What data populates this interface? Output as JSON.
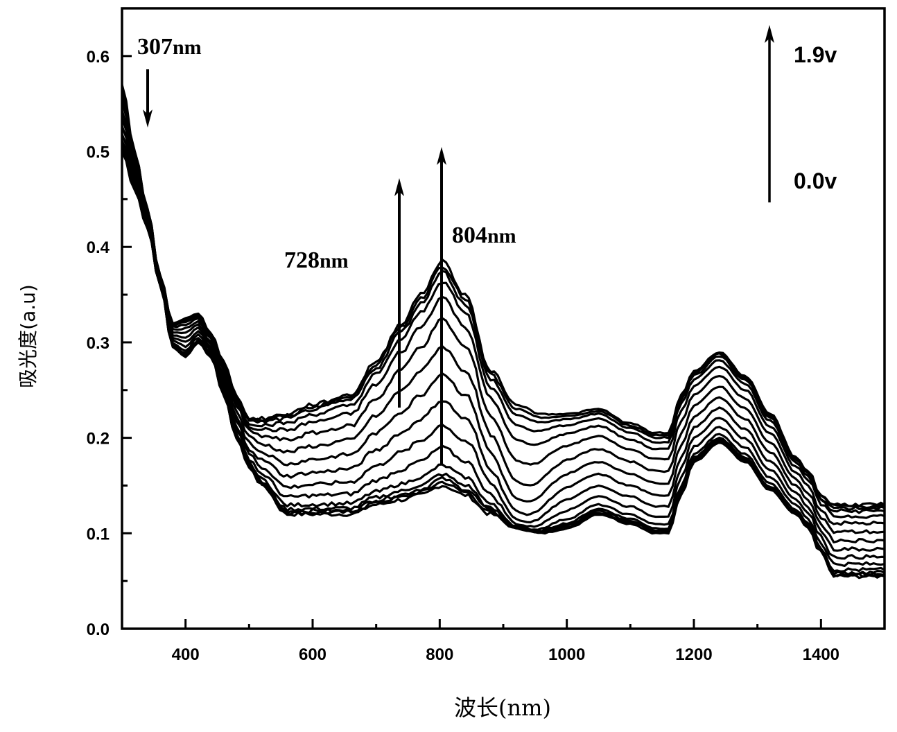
{
  "chart_data": {
    "type": "line",
    "title": "",
    "xlabel": "波长(nm)",
    "ylabel": "吸光度(a.u)",
    "xlim": [
      300,
      1500
    ],
    "ylim": [
      0,
      0.65
    ],
    "x_ticks": [
      400,
      600,
      800,
      1000,
      1200,
      1400
    ],
    "x_tick_labels": [
      "400",
      "600",
      "800",
      "1000",
      "1200",
      "1400"
    ],
    "x_minor_ticks": [
      500,
      700,
      900,
      1100,
      1300
    ],
    "y_ticks": [
      0.0,
      0.1,
      0.2,
      0.3,
      0.4,
      0.5,
      0.6
    ],
    "y_tick_labels": [
      "0.0",
      "0.1",
      "0.2",
      "0.3",
      "0.4",
      "0.5",
      "0.6"
    ],
    "y_minor_ticks": [
      0.05,
      0.15,
      0.25,
      0.35,
      0.45,
      0.55
    ],
    "grid": false,
    "legend": "none",
    "series_count": 16,
    "voltage_range": {
      "start_label": "0.0v",
      "end_label": "1.9v"
    },
    "x": [
      300,
      320,
      340,
      360,
      380,
      400,
      420,
      440,
      460,
      480,
      500,
      520,
      560,
      600,
      660,
      700,
      740,
      770,
      804,
      840,
      880,
      920,
      960,
      1000,
      1050,
      1100,
      1140,
      1160,
      1180,
      1200,
      1240,
      1280,
      1320,
      1360,
      1380,
      1400,
      1420,
      1460,
      1500
    ],
    "series": [
      {
        "name": "0.0v",
        "values": [
          0.5,
          0.46,
          0.42,
          0.36,
          0.295,
          0.285,
          0.3,
          0.285,
          0.245,
          0.2,
          0.17,
          0.15,
          0.12,
          0.12,
          0.12,
          0.13,
          0.135,
          0.14,
          0.15,
          0.14,
          0.12,
          0.105,
          0.1,
          0.105,
          0.12,
          0.11,
          0.1,
          0.1,
          0.14,
          0.175,
          0.195,
          0.175,
          0.145,
          0.12,
          0.105,
          0.08,
          0.055,
          0.055,
          0.055
        ]
      },
      {
        "name": "1.9v",
        "values": [
          0.57,
          0.5,
          0.44,
          0.37,
          0.32,
          0.325,
          0.33,
          0.31,
          0.28,
          0.245,
          0.22,
          0.22,
          0.225,
          0.235,
          0.245,
          0.28,
          0.32,
          0.35,
          0.385,
          0.35,
          0.27,
          0.235,
          0.225,
          0.225,
          0.23,
          0.215,
          0.205,
          0.205,
          0.245,
          0.27,
          0.29,
          0.265,
          0.225,
          0.18,
          0.165,
          0.14,
          0.13,
          0.13,
          0.13
        ]
      }
    ],
    "annotations": [
      {
        "text": "307nm",
        "arrow": "down",
        "x": 307
      },
      {
        "text": "728nm",
        "arrow": "up",
        "x": 728
      },
      {
        "text": "804nm",
        "arrow": "up",
        "x": 804
      },
      {
        "text": "1.9v",
        "arrow": "up"
      },
      {
        "text": "0.0v"
      }
    ]
  },
  "labels": {
    "a307": "307",
    "a728": "728",
    "a804": "804",
    "nm": "nm",
    "v_top": "1.9v",
    "v_bottom": "0.0v"
  }
}
